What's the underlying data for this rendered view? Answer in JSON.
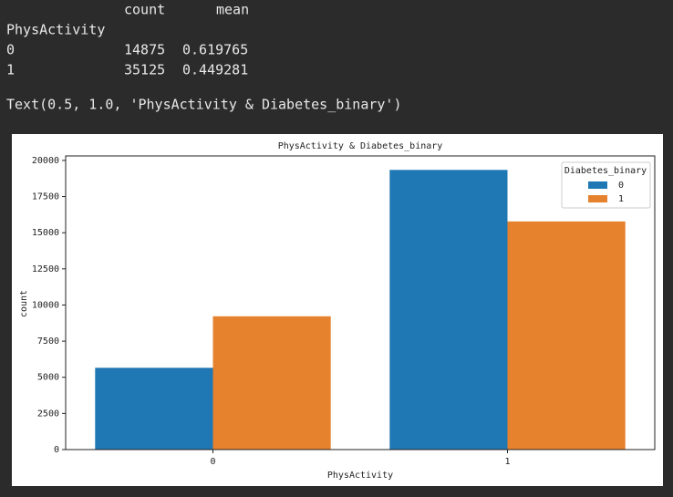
{
  "output": {
    "columns": [
      "count",
      "mean"
    ],
    "index_name": "PhysActivity",
    "rows": [
      [
        "0",
        14875,
        0.619765
      ],
      [
        "1",
        35125,
        0.449281
      ]
    ],
    "repr": "Text(0.5, 1.0, 'PhysActivity & Diabetes_binary')"
  },
  "chart_data": {
    "type": "bar",
    "title": "PhysActivity & Diabetes_binary",
    "x_label": "PhysActivity",
    "y_label": "count",
    "categories": [
      "0",
      "1"
    ],
    "series": [
      {
        "name": "0",
        "color": "#1f77b4",
        "values": [
          5656,
          19344
        ]
      },
      {
        "name": "1",
        "color": "#e6822d",
        "values": [
          9219,
          15781
        ]
      }
    ],
    "legend_title": "Diabetes_binary",
    "legend": "upper right",
    "ylim": [
      0,
      20311
    ],
    "yticks": [
      0,
      2500,
      5000,
      7500,
      10000,
      12500,
      15000,
      17500,
      20000
    ]
  }
}
